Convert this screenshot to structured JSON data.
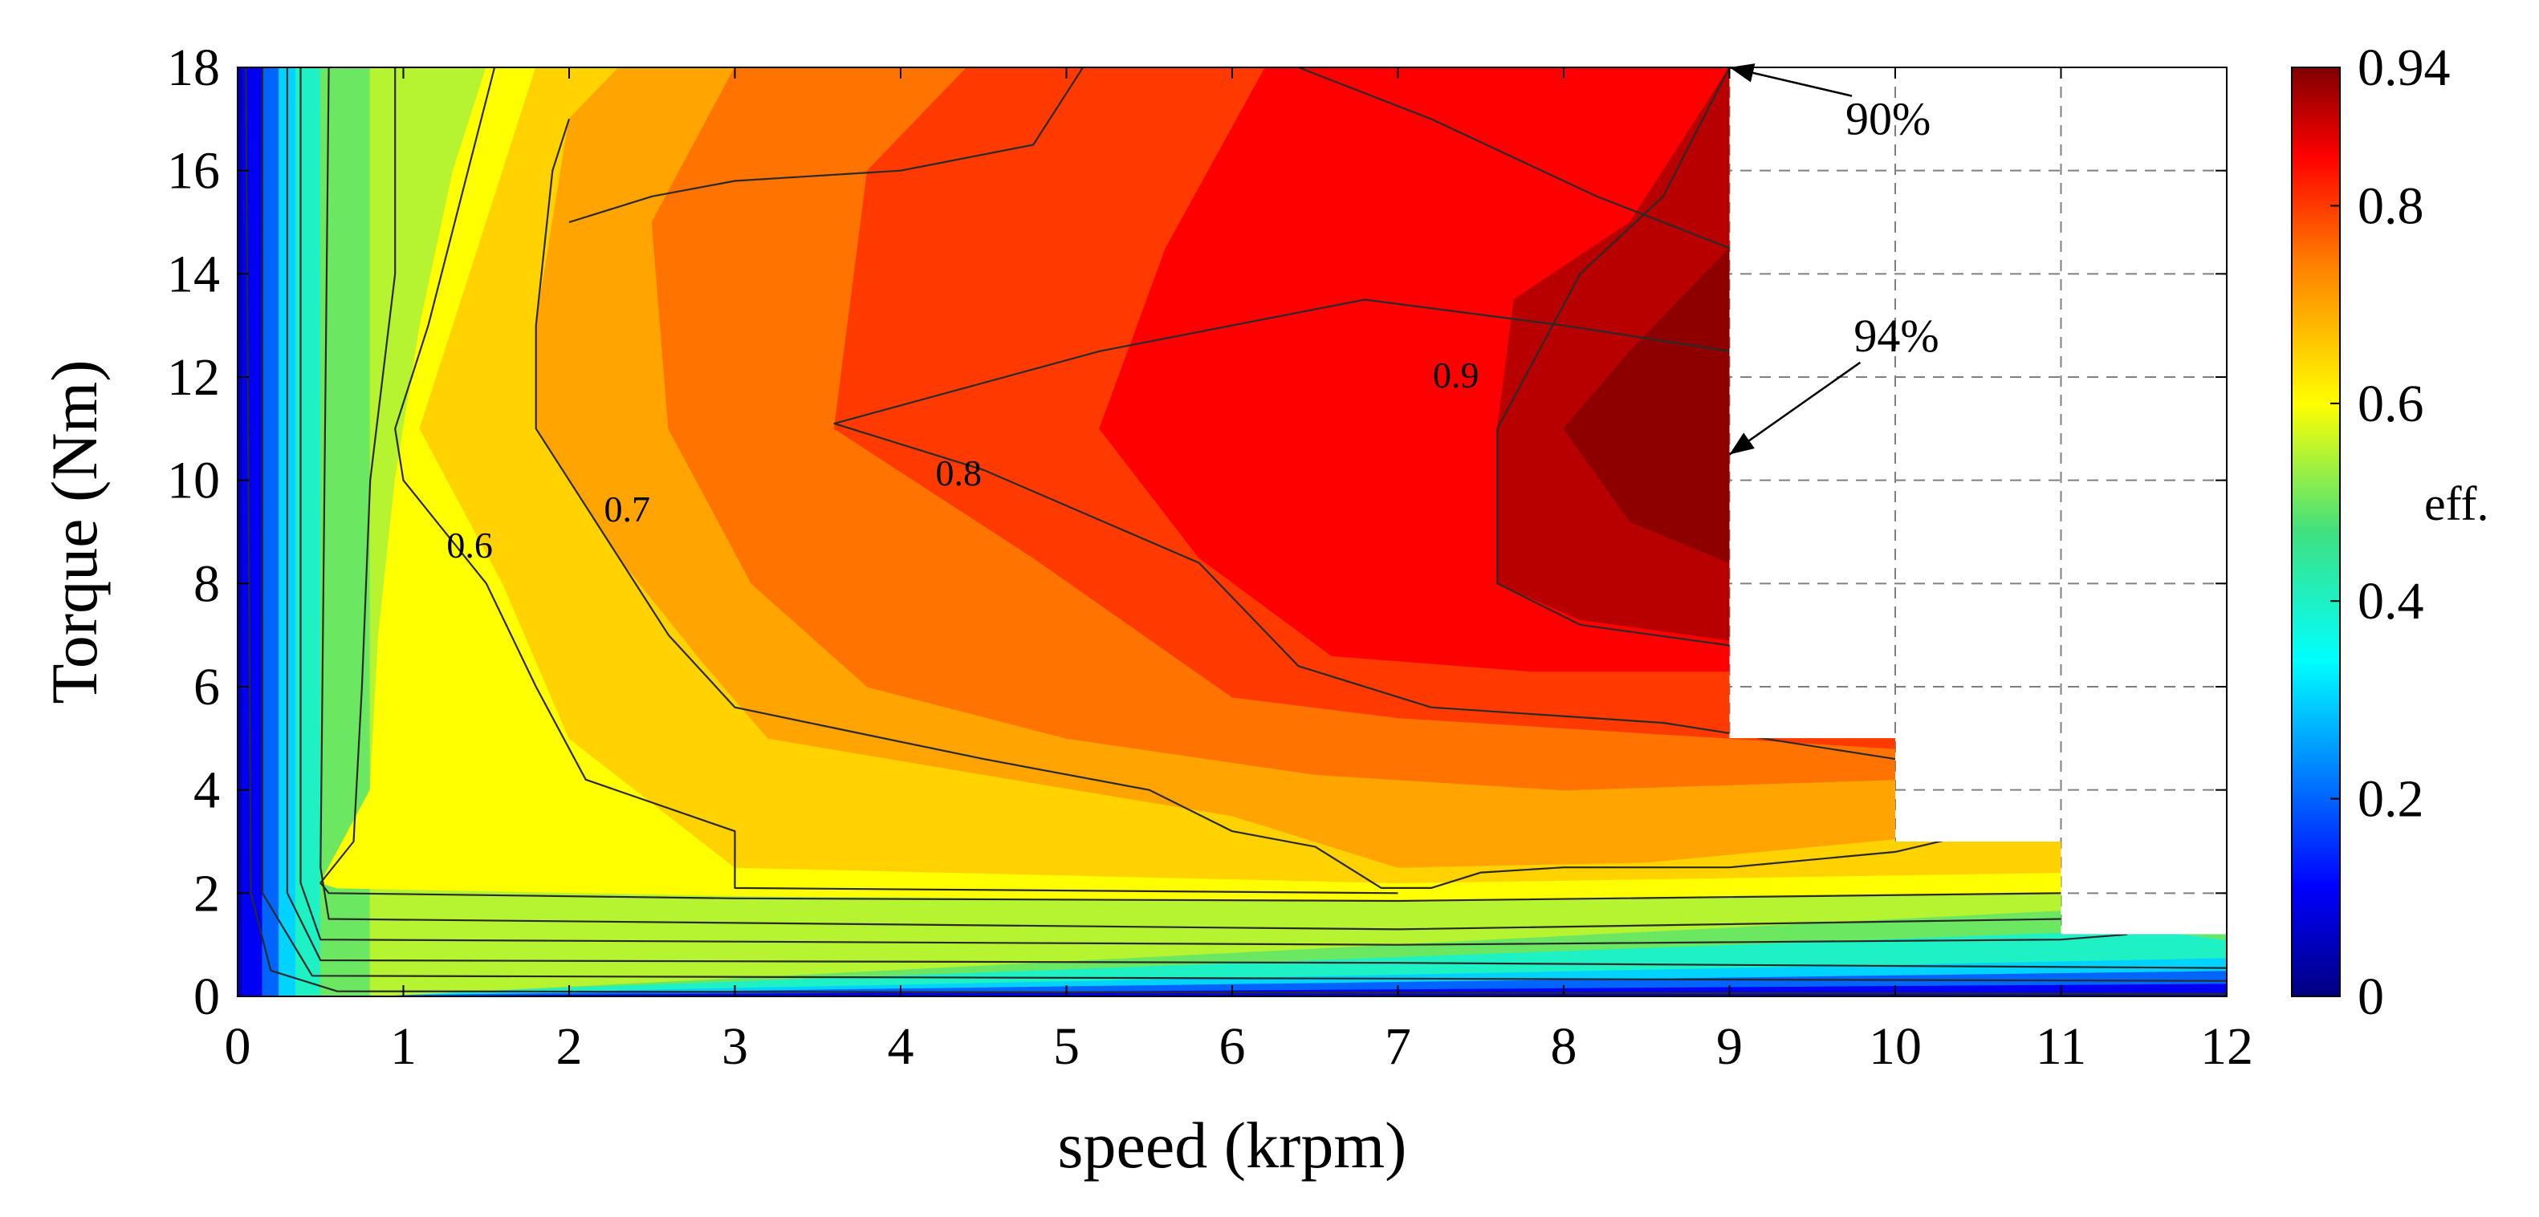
{
  "chart_data": {
    "type": "heatmap",
    "subtype": "filled-contour efficiency map",
    "xlabel": "speed (krpm)",
    "ylabel": "Torque (Nm)",
    "xlim": [
      0,
      12
    ],
    "ylim": [
      0,
      18
    ],
    "x_ticks": [
      "0",
      "1",
      "2",
      "3",
      "4",
      "5",
      "6",
      "7",
      "8",
      "9",
      "10",
      "11",
      "12"
    ],
    "y_ticks": [
      "0",
      "2",
      "4",
      "6",
      "8",
      "10",
      "12",
      "14",
      "16",
      "18"
    ],
    "grid": "dashed",
    "colorbar": {
      "label": "eff.",
      "range": [
        0,
        0.94
      ],
      "ticks": [
        "0",
        "0.2",
        "0.4",
        "0.6",
        "0.8",
        "0.94"
      ],
      "colormap": "jet",
      "stops": [
        {
          "v": 0.0,
          "color": "#000080"
        },
        {
          "v": 0.11,
          "color": "#0000ff"
        },
        {
          "v": 0.34,
          "color": "#00ffff"
        },
        {
          "v": 0.47,
          "color": "#40e080"
        },
        {
          "v": 0.6,
          "color": "#ffff00"
        },
        {
          "v": 0.74,
          "color": "#ff8000"
        },
        {
          "v": 0.85,
          "color": "#ff0000"
        },
        {
          "v": 0.94,
          "color": "#800000"
        }
      ]
    },
    "operating_envelope": [
      [
        0,
        0
      ],
      [
        0,
        18
      ],
      [
        9,
        18
      ],
      [
        9,
        5
      ],
      [
        10,
        5
      ],
      [
        10,
        3
      ],
      [
        11,
        3
      ],
      [
        11,
        1.2
      ],
      [
        12,
        1.2
      ],
      [
        12,
        0
      ]
    ],
    "filled_levels": [
      {
        "level": 0.1,
        "boundary": [
          [
            0.03,
            0
          ],
          [
            0.03,
            18
          ],
          [
            12,
            18
          ],
          [
            12,
            0.08
          ]
        ]
      },
      {
        "level": 0.2,
        "boundary": [
          [
            0.15,
            0
          ],
          [
            0.15,
            18
          ],
          [
            12,
            18
          ],
          [
            12,
            0.25
          ]
        ]
      },
      {
        "level": 0.3,
        "boundary": [
          [
            0.25,
            0
          ],
          [
            0.25,
            18
          ],
          [
            12,
            18
          ],
          [
            12,
            0.5
          ]
        ]
      },
      {
        "level": 0.4,
        "boundary": [
          [
            0.35,
            0
          ],
          [
            0.35,
            18
          ],
          [
            12,
            18
          ],
          [
            12,
            0.75
          ]
        ]
      },
      {
        "level": 0.5,
        "boundary": [
          [
            0.5,
            0
          ],
          [
            0.5,
            18
          ],
          [
            12,
            18
          ],
          [
            12,
            1.1
          ],
          [
            11.5,
            1.3
          ]
        ]
      },
      {
        "level": 0.55,
        "boundary": [
          [
            0.8,
            0
          ],
          [
            0.8,
            18
          ],
          [
            12,
            18
          ],
          [
            12,
            1.6
          ],
          [
            11.2,
            1.7
          ]
        ]
      },
      {
        "level": 0.6,
        "boundary": [
          [
            0.5,
            2.2
          ],
          [
            0.8,
            4
          ],
          [
            0.85,
            7
          ],
          [
            0.95,
            10
          ],
          [
            1.1,
            13
          ],
          [
            1.3,
            16
          ],
          [
            1.5,
            18
          ],
          [
            12,
            18
          ],
          [
            12,
            2.0
          ],
          [
            11,
            2.0
          ],
          [
            7,
            1.85
          ],
          [
            3,
            1.95
          ],
          [
            0.6,
            2.1
          ]
        ]
      },
      {
        "level": 0.65,
        "boundary": [
          [
            1.8,
            18
          ],
          [
            1.5,
            15
          ],
          [
            1.1,
            11
          ],
          [
            1.6,
            8
          ],
          [
            2.0,
            5
          ],
          [
            3,
            2.5
          ],
          [
            7,
            2.2
          ],
          [
            11,
            2.4
          ],
          [
            12,
            2.4
          ],
          [
            12,
            18
          ]
        ]
      },
      {
        "level": 0.7,
        "boundary": [
          [
            2.0,
            17
          ],
          [
            1.8,
            13
          ],
          [
            1.8,
            11
          ],
          [
            2.3,
            8.5
          ],
          [
            2.8,
            6.5
          ],
          [
            3.2,
            5
          ],
          [
            4.5,
            4.3
          ],
          [
            6,
            3.5
          ],
          [
            7,
            2.5
          ],
          [
            8.5,
            2.6
          ],
          [
            10.5,
            3.2
          ],
          [
            12,
            3.2
          ],
          [
            12,
            18
          ],
          [
            2.3,
            18
          ]
        ]
      },
      {
        "level": 0.75,
        "boundary": [
          [
            3,
            18
          ],
          [
            2.5,
            15
          ],
          [
            2.6,
            11
          ],
          [
            3.1,
            8
          ],
          [
            3.8,
            6
          ],
          [
            5,
            5
          ],
          [
            6.5,
            4.3
          ],
          [
            8,
            4
          ],
          [
            10,
            4.2
          ],
          [
            12,
            4.2
          ],
          [
            12,
            18
          ]
        ]
      },
      {
        "level": 0.8,
        "boundary": [
          [
            4.4,
            18
          ],
          [
            3.8,
            16
          ],
          [
            3.6,
            11
          ],
          [
            4.8,
            8.5
          ],
          [
            6,
            5.8
          ],
          [
            7,
            5.4
          ],
          [
            8,
            5.2
          ],
          [
            9,
            5.0
          ],
          [
            10,
            4.8
          ],
          [
            12,
            4.8
          ],
          [
            12,
            18
          ]
        ]
      },
      {
        "level": 0.85,
        "boundary": [
          [
            6.2,
            18
          ],
          [
            5.6,
            14.5
          ],
          [
            5.2,
            11
          ],
          [
            5.8,
            8.5
          ],
          [
            6.6,
            6.6
          ],
          [
            7.8,
            6.3
          ],
          [
            9,
            6.3
          ],
          [
            12,
            6.3
          ],
          [
            12,
            18
          ],
          [
            8,
            18
          ]
        ]
      },
      {
        "level": 0.9,
        "boundary": [
          [
            9,
            18
          ],
          [
            8.4,
            15
          ],
          [
            7.7,
            13.5
          ],
          [
            7.6,
            11
          ],
          [
            7.6,
            8
          ],
          [
            8.1,
            7.3
          ],
          [
            9,
            6.9
          ],
          [
            12,
            6.9
          ],
          [
            12,
            18
          ]
        ]
      },
      {
        "level": 0.93,
        "boundary": [
          [
            9,
            14.5
          ],
          [
            8.4,
            12.5
          ],
          [
            8.0,
            11
          ],
          [
            8.4,
            9.2
          ],
          [
            9,
            8.4
          ],
          [
            12,
            8.4
          ],
          [
            12,
            14.5
          ]
        ]
      }
    ],
    "contour_lines": [
      {
        "label": "0.1",
        "points": [
          [
            0.05,
            18
          ],
          [
            0.08,
            2
          ],
          [
            0.2,
            0.5
          ],
          [
            0.6,
            0.1
          ],
          [
            12,
            0.05
          ]
        ]
      },
      {
        "label": "0.2",
        "points": [
          [
            0.15,
            18
          ],
          [
            0.15,
            2
          ],
          [
            0.45,
            0.4
          ],
          [
            12,
            0.3
          ]
        ]
      },
      {
        "label": "0.3",
        "points": [
          [
            0.3,
            18
          ],
          [
            0.3,
            2
          ],
          [
            0.5,
            0.7
          ],
          [
            7,
            0.65
          ],
          [
            12,
            0.55
          ]
        ]
      },
      {
        "label": "0.4",
        "points": [
          [
            0.38,
            18
          ],
          [
            0.38,
            2.2
          ],
          [
            0.5,
            1.1
          ],
          [
            7,
            1.0
          ],
          [
            11,
            1.1
          ],
          [
            11.4,
            1.2
          ]
        ]
      },
      {
        "label": "0.5",
        "points": [
          [
            0.55,
            18
          ],
          [
            0.5,
            2.5
          ],
          [
            0.55,
            1.5
          ],
          [
            7,
            1.3
          ],
          [
            11,
            1.5
          ],
          [
            11.2,
            1.6
          ]
        ]
      },
      {
        "label": "0.6",
        "points": [
          [
            0.95,
            18
          ],
          [
            0.95,
            14
          ],
          [
            0.8,
            10
          ],
          [
            0.75,
            6
          ],
          [
            0.7,
            3
          ],
          [
            0.5,
            2.2
          ],
          [
            0.55,
            2
          ],
          [
            3,
            1.9
          ],
          [
            7,
            1.85
          ],
          [
            11,
            2.0
          ]
        ]
      },
      {
        "label": "0.6",
        "points": [
          [
            1.55,
            18
          ],
          [
            1.15,
            13
          ],
          [
            0.95,
            11
          ],
          [
            1.0,
            10
          ],
          [
            1.5,
            8
          ],
          [
            1.8,
            6
          ],
          [
            2.1,
            4.2
          ],
          [
            3,
            3.2
          ],
          [
            3,
            2.1
          ],
          [
            7,
            2.0
          ]
        ]
      },
      {
        "label": "0.7",
        "points": [
          [
            2.0,
            17
          ],
          [
            1.9,
            16
          ],
          [
            1.8,
            13
          ],
          [
            1.8,
            11
          ],
          [
            2.2,
            9
          ],
          [
            2.6,
            7
          ],
          [
            3,
            5.6
          ],
          [
            3.6,
            5.2
          ],
          [
            4.5,
            4.6
          ],
          [
            5.5,
            4.0
          ],
          [
            6,
            3.2
          ],
          [
            6.5,
            2.9
          ],
          [
            6.9,
            2.1
          ],
          [
            7.2,
            2.1
          ],
          [
            7.5,
            2.4
          ],
          [
            8,
            2.5
          ],
          [
            9,
            2.5
          ],
          [
            10,
            2.8
          ],
          [
            10.4,
            3.1
          ]
        ]
      },
      {
        "label": "0.8",
        "points": [
          [
            5.1,
            18
          ],
          [
            5,
            17.5
          ],
          [
            4.8,
            16.5
          ],
          [
            4,
            16
          ],
          [
            3,
            15.8
          ],
          [
            2.5,
            15.5
          ],
          [
            2.0,
            15
          ]
        ]
      },
      {
        "label": "0.8",
        "points": [
          [
            6.4,
            18
          ],
          [
            7.2,
            17
          ],
          [
            8.2,
            15.5
          ],
          [
            9,
            14.5
          ]
        ]
      },
      {
        "label": "0.8",
        "points": [
          [
            9,
            12.5
          ],
          [
            8,
            13
          ],
          [
            6.8,
            13.5
          ],
          [
            5.2,
            12.5
          ],
          [
            3.6,
            11.1
          ],
          [
            4.5,
            10.2
          ],
          [
            5.8,
            8.4
          ],
          [
            6.4,
            6.4
          ],
          [
            7.2,
            5.6
          ],
          [
            8.6,
            5.3
          ],
          [
            9,
            5.1
          ],
          [
            10,
            4.6
          ]
        ]
      },
      {
        "label": "0.9",
        "points": [
          [
            9,
            18
          ],
          [
            8.6,
            15.5
          ],
          [
            8.1,
            14
          ],
          [
            7.6,
            11
          ],
          [
            7.6,
            8
          ],
          [
            8.1,
            7.2
          ],
          [
            9,
            6.8
          ]
        ]
      }
    ],
    "contour_labels": [
      {
        "text": "0.6",
        "x": 1.4,
        "y": 8.5
      },
      {
        "text": "0.7",
        "x": 2.35,
        "y": 9.2
      },
      {
        "text": "0.8",
        "x": 4.35,
        "y": 9.9
      },
      {
        "text": "0.9",
        "x": 7.35,
        "y": 11.8
      }
    ],
    "annotations": [
      {
        "text": "90%",
        "x": 9.7,
        "y": 16.7,
        "arrow_to": [
          9.0,
          18
        ]
      },
      {
        "text": "94%",
        "x": 9.75,
        "y": 12.5,
        "arrow_to": [
          9.0,
          10.5
        ]
      }
    ]
  }
}
